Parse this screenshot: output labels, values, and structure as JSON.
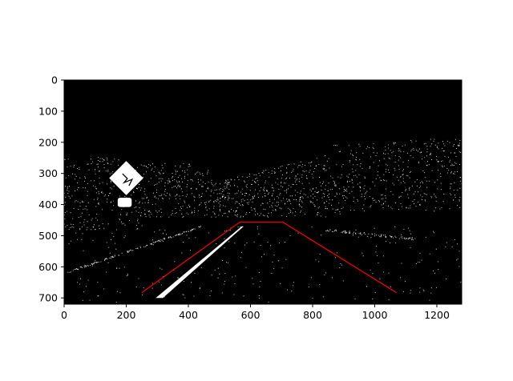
{
  "chart_data": {
    "type": "image",
    "description": "binary edge map with region-of-interest polygon overlay",
    "xlim": [
      0,
      1280
    ],
    "ylim": [
      720,
      0
    ],
    "xticks": [
      0,
      200,
      400,
      600,
      800,
      1000,
      1200
    ],
    "yticks": [
      0,
      100,
      200,
      300,
      400,
      500,
      600,
      700
    ],
    "xtick_labels": [
      "0",
      "200",
      "400",
      "600",
      "800",
      "1000",
      "1200"
    ],
    "ytick_labels": [
      "0",
      "100",
      "200",
      "300",
      "400",
      "500",
      "600",
      "700"
    ],
    "background_color": "#000000",
    "overlay": {
      "color": "#ff0000",
      "points": [
        [
          250,
          683
        ],
        [
          565,
          457
        ],
        [
          705,
          457
        ],
        [
          1070,
          683
        ]
      ]
    },
    "bright_features": {
      "lane_stripe": [
        [
          295,
          700
        ],
        [
          318,
          700
        ],
        [
          578,
          470
        ],
        [
          572,
          470
        ]
      ],
      "sign": {
        "center": [
          200,
          315
        ],
        "half_size": 55
      },
      "sign_plate": {
        "center": [
          195,
          393
        ],
        "w": 45,
        "h": 30
      }
    }
  }
}
